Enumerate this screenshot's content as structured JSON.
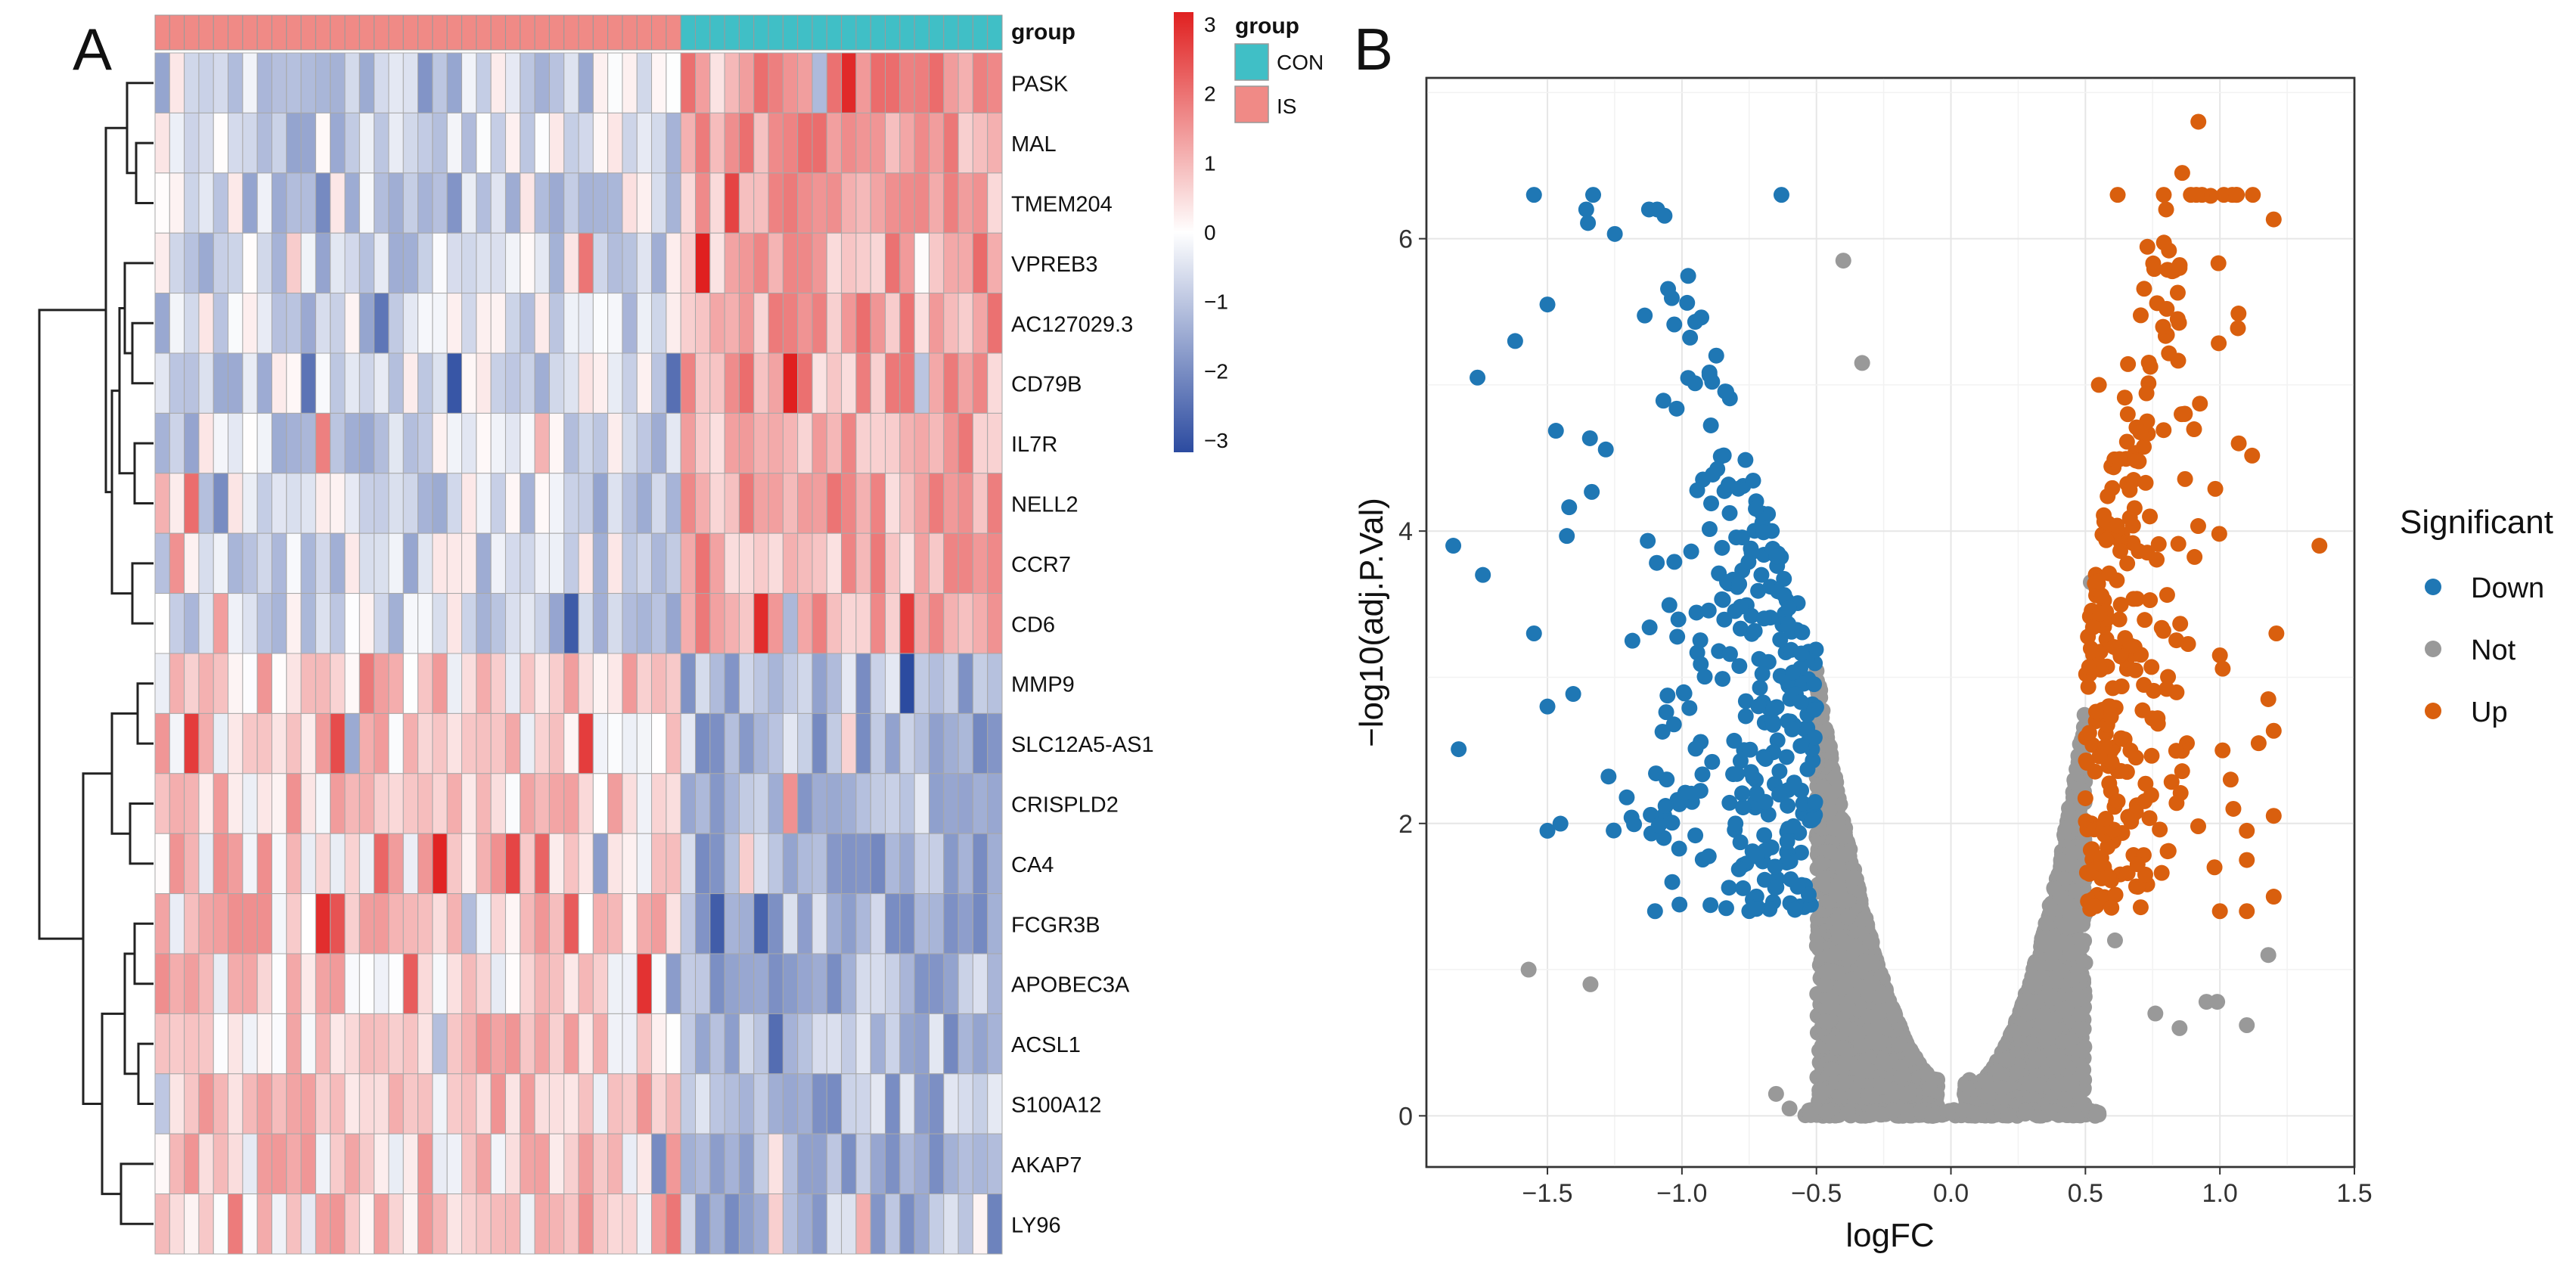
{
  "panel_a": {
    "letter": "A",
    "chart_data": {
      "type": "heatmap",
      "annotation_label": "group",
      "group_legend": {
        "title": "group",
        "items": [
          {
            "label": "CON",
            "color": "#40BFC6"
          },
          {
            "label": "IS",
            "color": "#F08A86"
          }
        ]
      },
      "color_scale": {
        "ticks": [
          "3",
          "2",
          "1",
          "0",
          "−1",
          "−2",
          "−3"
        ],
        "min": -3,
        "max": 3,
        "low": "#2C4BA0",
        "mid": "#FFFFFF",
        "high": "#E02020"
      },
      "samples": {
        "IS": 36,
        "CON": 22
      },
      "genes": [
        "PASK",
        "MAL",
        "TMEM204",
        "VPREB3",
        "AC127029.3",
        "CD79B",
        "IL7R",
        "NELL2",
        "CCR7",
        "CD6",
        "MMP9",
        "SLC12A5-AS1",
        "CRISPLD2",
        "CA4",
        "FCGR3B",
        "APOBEC3A",
        "ACSL1",
        "S100A12",
        "AKAP7",
        "LY96"
      ],
      "gene_trend": [
        -1,
        -1,
        -1,
        -1,
        -1,
        -1,
        -1,
        -1,
        -1,
        -1,
        1,
        1,
        1,
        1,
        1,
        1,
        1,
        1,
        1,
        1
      ],
      "dendrogram": "hierarchical clustering of rows"
    }
  },
  "panel_b": {
    "letter": "B",
    "chart_data": {
      "type": "scatter",
      "subtype": "volcano",
      "xlabel": "logFC",
      "ylabel": "−log10(adj.P.Val)",
      "xlim": [
        -1.95,
        1.5
      ],
      "ylim": [
        -0.35,
        7.1
      ],
      "xticks": [
        -1.5,
        -1.0,
        -0.5,
        0.0,
        0.5,
        1.0,
        1.5
      ],
      "xtick_labels": [
        "−1.5",
        "−1.0",
        "−0.5",
        "0.0",
        "0.5",
        "1.0",
        "1.5"
      ],
      "yticks": [
        0,
        2,
        4,
        6
      ],
      "ytick_labels": [
        "0",
        "2",
        "4",
        "6"
      ],
      "thresholds": {
        "logFC": 0.5
      },
      "legend": {
        "title": "Significant",
        "position": "right",
        "items": [
          {
            "label": "Down",
            "color": "#1F77B4"
          },
          {
            "label": "Not",
            "color": "#999999"
          },
          {
            "label": "Up",
            "color": "#D95F0E"
          }
        ]
      },
      "series": [
        {
          "name": "Down",
          "color": "#1F77B4",
          "approx_count": 300,
          "highlight_points": [
            [
              -1.85,
              3.9
            ],
            [
              -1.74,
              3.7
            ],
            [
              -1.55,
              6.3
            ],
            [
              -1.33,
              6.3
            ],
            [
              -0.63,
              6.3
            ],
            [
              -1.5,
              5.55
            ],
            [
              -1.55,
              3.3
            ],
            [
              -1.5,
              2.8
            ],
            [
              -1.5,
              1.95
            ],
            [
              -1.76,
              5.05
            ],
            [
              -1.62,
              5.3
            ],
            [
              -1.1,
              1.4
            ]
          ]
        },
        {
          "name": "Not",
          "color": "#999999",
          "approx_count": 4000,
          "highlight_points": [
            [
              -0.4,
              5.85
            ],
            [
              -0.33,
              5.15
            ],
            [
              -1.57,
              1.0
            ],
            [
              -1.34,
              0.9
            ],
            [
              -0.65,
              0.15
            ],
            [
              -0.6,
              0.05
            ],
            [
              0.52,
              3.65
            ],
            [
              0.61,
              1.2
            ],
            [
              0.95,
              0.78
            ],
            [
              0.99,
              0.78
            ],
            [
              1.1,
              0.62
            ],
            [
              1.18,
              1.1
            ],
            [
              0.85,
              0.6
            ],
            [
              0.76,
              0.7
            ]
          ]
        },
        {
          "name": "Up",
          "color": "#D95F0E",
          "approx_count": 280,
          "highlight_points": [
            [
              0.92,
              6.8
            ],
            [
              0.86,
              6.45
            ],
            [
              0.8,
              6.2
            ],
            [
              0.62,
              6.3
            ],
            [
              1.07,
              4.6
            ],
            [
              1.37,
              3.9
            ],
            [
              1.21,
              3.3
            ],
            [
              1.18,
              2.85
            ],
            [
              1.0,
              3.15
            ],
            [
              1.01,
              2.5
            ],
            [
              1.05,
              2.1
            ],
            [
              1.1,
              1.95
            ],
            [
              1.1,
              1.75
            ],
            [
              1.1,
              1.4
            ],
            [
              1.0,
              1.4
            ],
            [
              0.98,
              1.7
            ],
            [
              1.04,
              2.3
            ],
            [
              0.85,
              5.8
            ],
            [
              0.55,
              5.0
            ]
          ]
        }
      ]
    }
  }
}
